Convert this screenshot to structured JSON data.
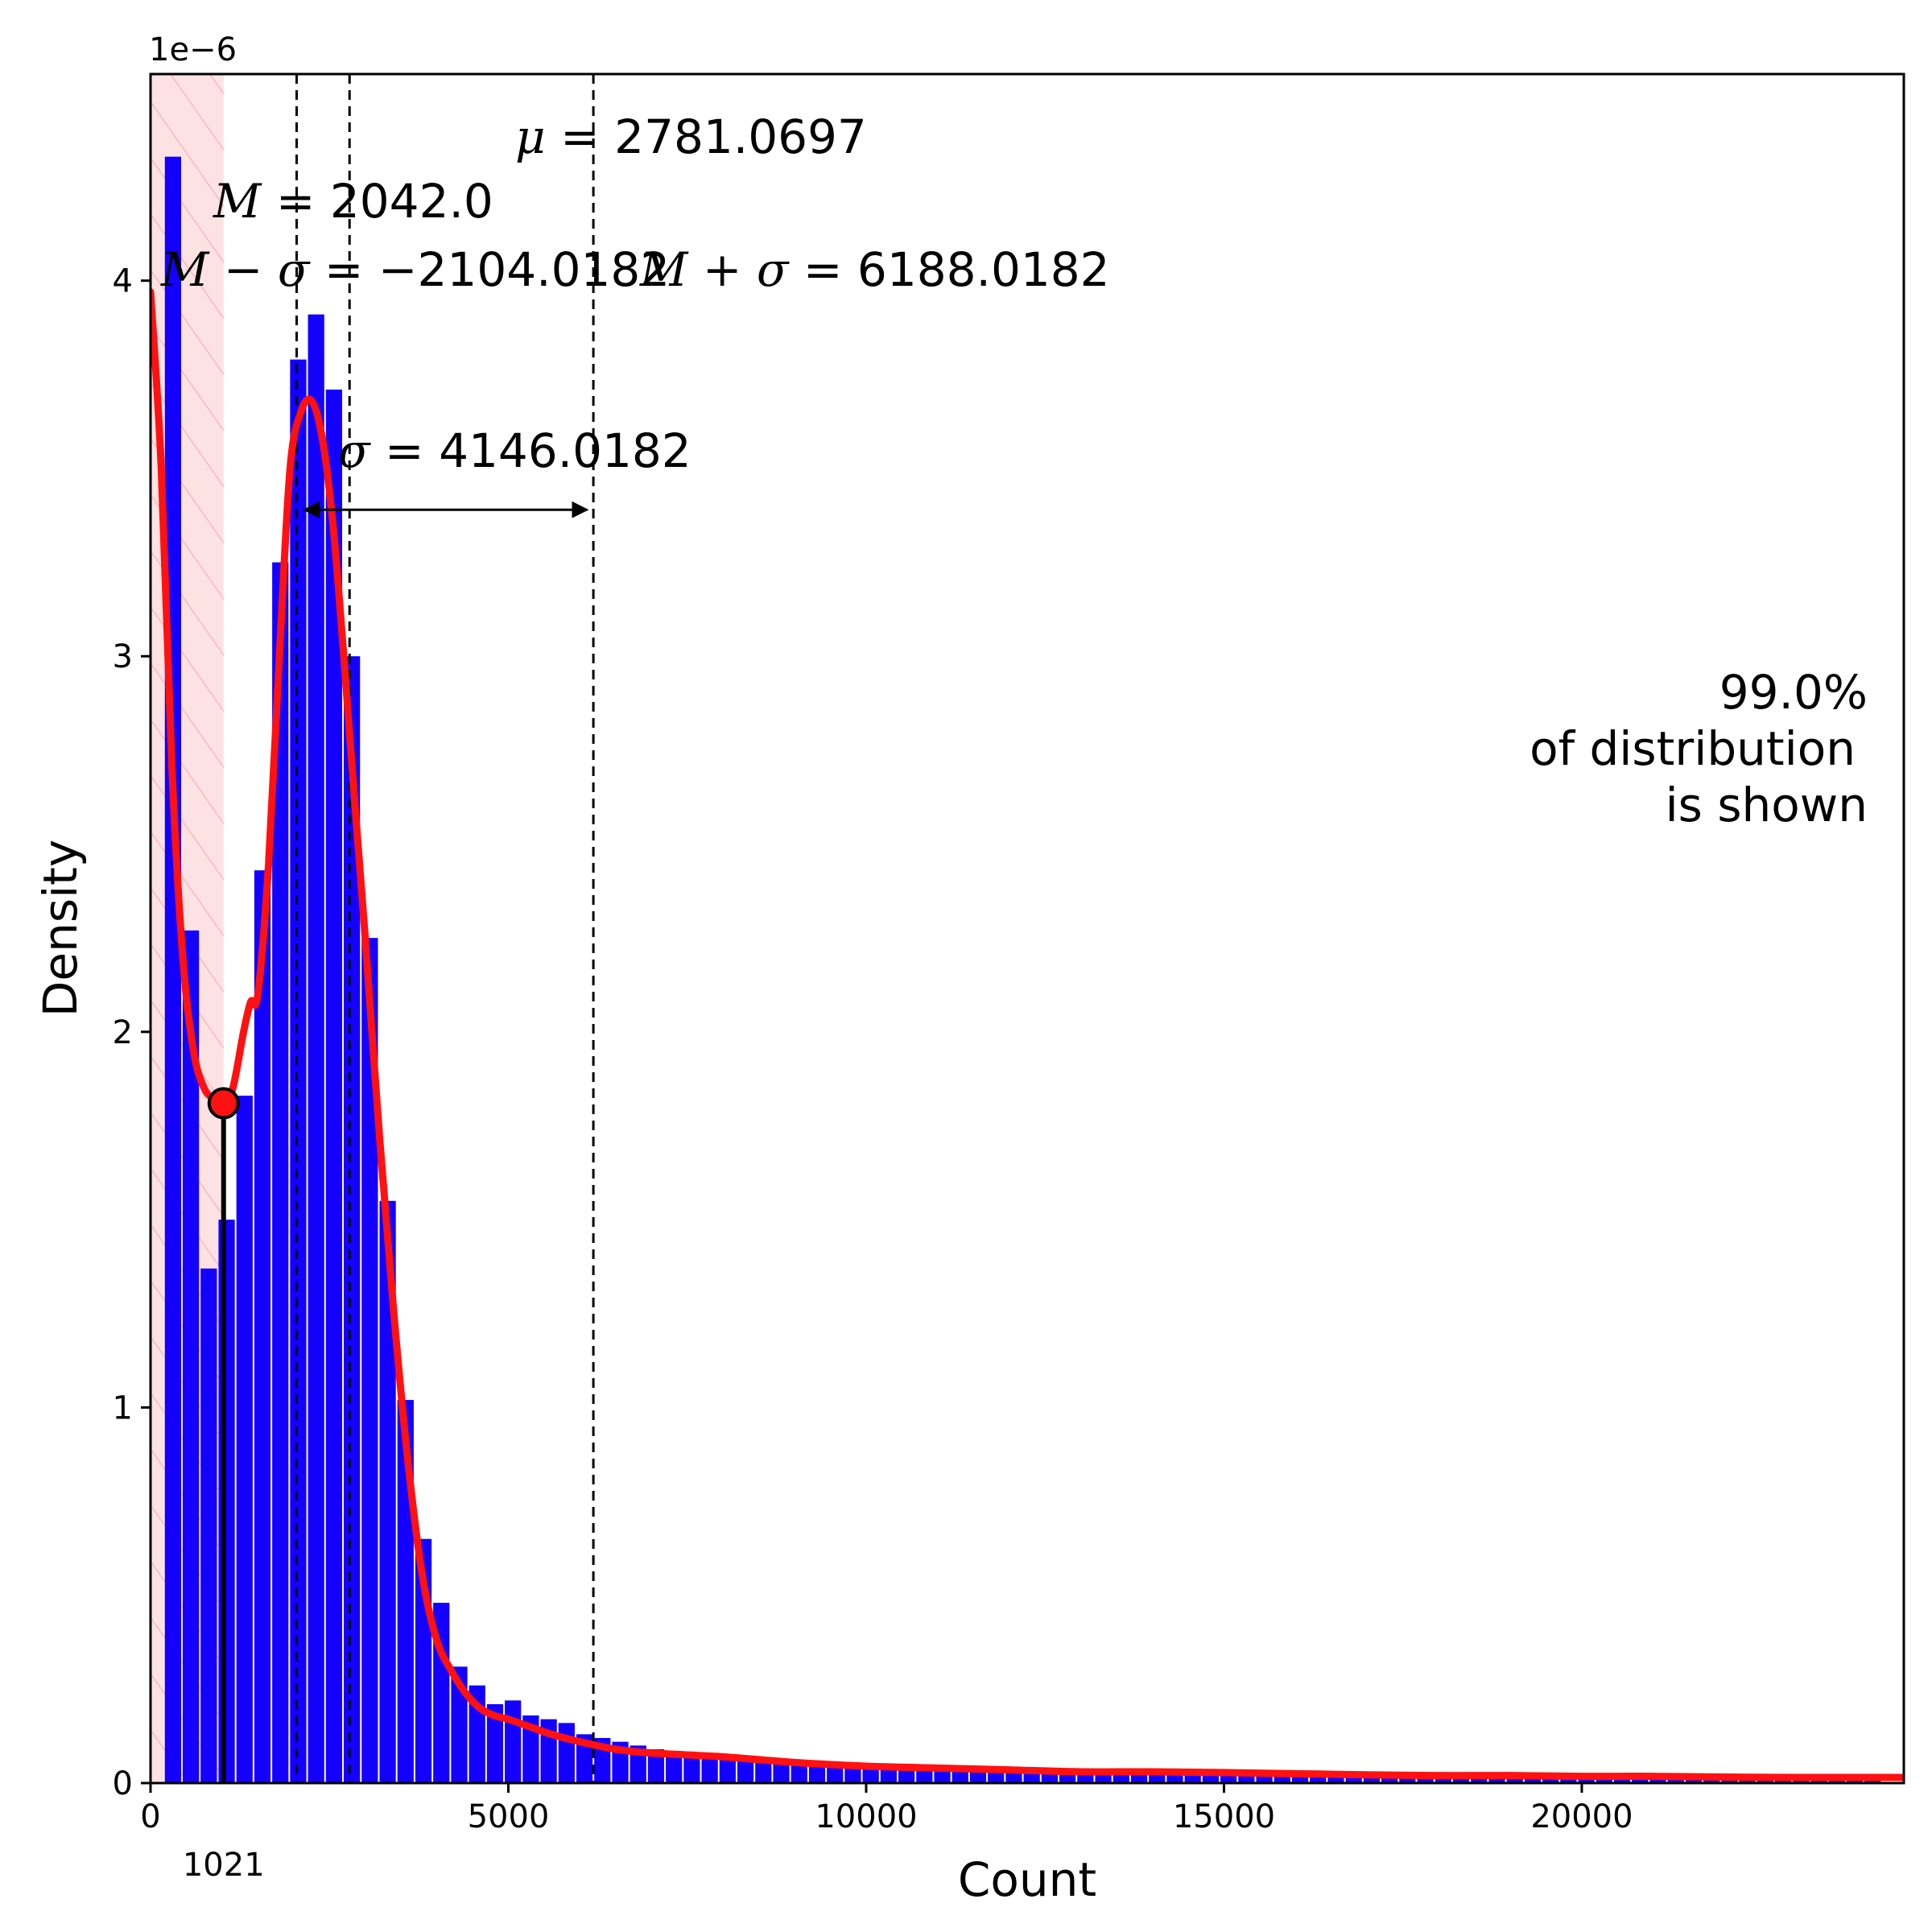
{
  "chart_data": {
    "type": "bar",
    "xlabel": "Count",
    "ylabel": "Density",
    "y_scale_label": "1e−6",
    "xlim": [
      0,
      24500
    ],
    "ylim": [
      0,
      4.55
    ],
    "x_ticks": [
      {
        "value": 0,
        "label": "0"
      },
      {
        "value": 5000,
        "label": "5000"
      },
      {
        "value": 10000,
        "label": "10000"
      },
      {
        "value": 15000,
        "label": "15000"
      },
      {
        "value": 20000,
        "label": "20000"
      }
    ],
    "y_ticks": [
      {
        "value": 0,
        "label": "0"
      },
      {
        "value": 1,
        "label": "1"
      },
      {
        "value": 2,
        "label": "2"
      },
      {
        "value": 3,
        "label": "3"
      },
      {
        "value": 4,
        "label": "4"
      }
    ],
    "bin_width": 250,
    "bin_start": 200,
    "histogram_values": [
      4.33,
      2.27,
      1.37,
      1.5,
      1.83,
      2.43,
      3.25,
      3.79,
      3.91,
      3.71,
      3.0,
      2.25,
      1.55,
      1.02,
      0.65,
      0.48,
      0.31,
      0.26,
      0.21,
      0.22,
      0.18,
      0.17,
      0.16,
      0.13,
      0.12,
      0.11,
      0.1,
      0.09,
      0.085,
      0.08,
      0.075,
      0.07,
      0.068,
      0.065,
      0.06,
      0.058,
      0.055,
      0.052,
      0.05,
      0.048,
      0.046,
      0.044,
      0.042,
      0.04,
      0.039,
      0.038,
      0.037,
      0.036,
      0.035,
      0.034,
      0.033,
      0.032,
      0.031,
      0.03,
      0.03,
      0.029,
      0.028,
      0.028,
      0.027,
      0.027,
      0.026,
      0.026,
      0.025,
      0.025,
      0.024,
      0.024,
      0.023,
      0.023,
      0.022,
      0.022,
      0.022,
      0.021,
      0.021,
      0.021,
      0.02,
      0.02,
      0.02,
      0.019,
      0.019,
      0.019,
      0.018,
      0.018,
      0.018,
      0.018,
      0.017,
      0.017,
      0.017,
      0.017,
      0.016,
      0.016,
      0.016,
      0.016,
      0.015,
      0.015,
      0.015,
      0.015
    ],
    "kde_x": [
      0,
      150,
      300,
      450,
      600,
      750,
      900,
      1021,
      1150,
      1300,
      1400,
      1500,
      1650,
      1800,
      1950,
      2100,
      2250,
      2400,
      2550,
      2700,
      2850,
      3000,
      3200,
      3400,
      3600,
      3800,
      4000,
      4200,
      4400,
      4600,
      4800,
      5000,
      5300,
      5600,
      6000,
      6500,
      7000,
      8000,
      9000,
      10000,
      11000,
      12000,
      13000,
      14000,
      15000,
      16000,
      17000,
      18000,
      19000,
      20000,
      21000,
      22000,
      23000,
      24500
    ],
    "kde_y": [
      3.97,
      3.5,
      2.7,
      2.2,
      1.95,
      1.85,
      1.82,
      1.81,
      1.85,
      2.0,
      2.08,
      2.1,
      2.45,
      3.0,
      3.5,
      3.65,
      3.68,
      3.58,
      3.35,
      3.0,
      2.62,
      2.25,
      1.72,
      1.25,
      0.85,
      0.55,
      0.38,
      0.3,
      0.24,
      0.2,
      0.18,
      0.17,
      0.15,
      0.13,
      0.11,
      0.09,
      0.08,
      0.07,
      0.055,
      0.045,
      0.04,
      0.035,
      0.03,
      0.03,
      0.028,
      0.025,
      0.022,
      0.02,
      0.02,
      0.018,
      0.018,
      0.016,
      0.015,
      0.015
    ],
    "highlight_span": [
      0,
      1021
    ],
    "highlight_color": "#fde2e4",
    "bar_color": "#1300ff",
    "kde_color": "#ff1111",
    "marker": {
      "x": 1021,
      "y": 1.81,
      "label": "1021",
      "label_color": "#ff0000"
    },
    "vlines": [
      {
        "name": "median",
        "x": 2042
      },
      {
        "name": "mean",
        "x": 2781.0697
      },
      {
        "name": "m-plus-sigma",
        "x": 6188.0182
      }
    ],
    "sigma_arrow": {
      "x_start": 2150,
      "x_end": 6100,
      "y": 3.39
    },
    "annotations": {
      "mu_symbol": "μ",
      "mu_value": "= 2781.0697",
      "median_symbol": "M",
      "median_value": "= 2042.0",
      "m_minus_sigma_symbol": "M − σ",
      "m_minus_sigma_value": "= −2104.0182",
      "m_plus_sigma_symbol": "M + σ",
      "m_plus_sigma_value": "= 6188.0182",
      "sigma_symbol": "σ",
      "sigma_value": "= 4146.0182",
      "coverage_line1": "99.0%",
      "coverage_line2": "of distribution",
      "coverage_line3": "is shown"
    }
  }
}
